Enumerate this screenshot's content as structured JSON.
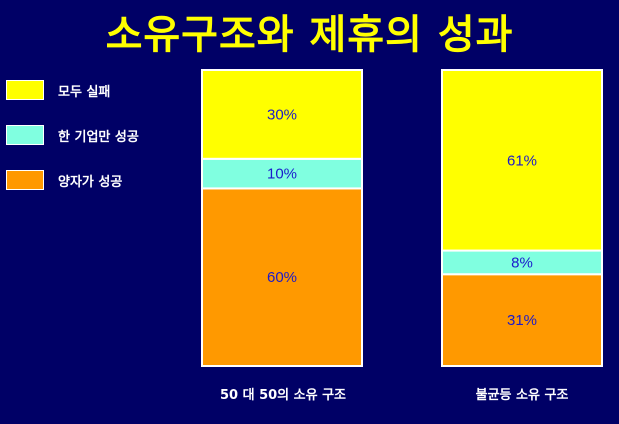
{
  "chart_data": {
    "type": "bar",
    "stacked": true,
    "title": "소유구조와 제휴의 성과",
    "categories": [
      "50 대 50의 소유 구조",
      "불균등 소유 구조"
    ],
    "series": [
      {
        "name": "양자가 성공",
        "color": "#ff9900",
        "values": [
          60,
          31
        ],
        "labels": [
          "60%",
          "31%"
        ]
      },
      {
        "name": "한 기업만 성공",
        "color": "#80ffe0",
        "values": [
          10,
          8
        ],
        "labels": [
          "10%",
          "8%"
        ]
      },
      {
        "name": "모두 실패",
        "color": "#ffff00",
        "values": [
          30,
          61
        ],
        "labels": [
          "30%",
          "61%"
        ]
      }
    ],
    "legend_order": [
      "모두 실패",
      "한 기업만 성공",
      "양자가 성공"
    ],
    "ylim": [
      0,
      100
    ],
    "label_color": "#1a1acc",
    "background": "#000066"
  }
}
